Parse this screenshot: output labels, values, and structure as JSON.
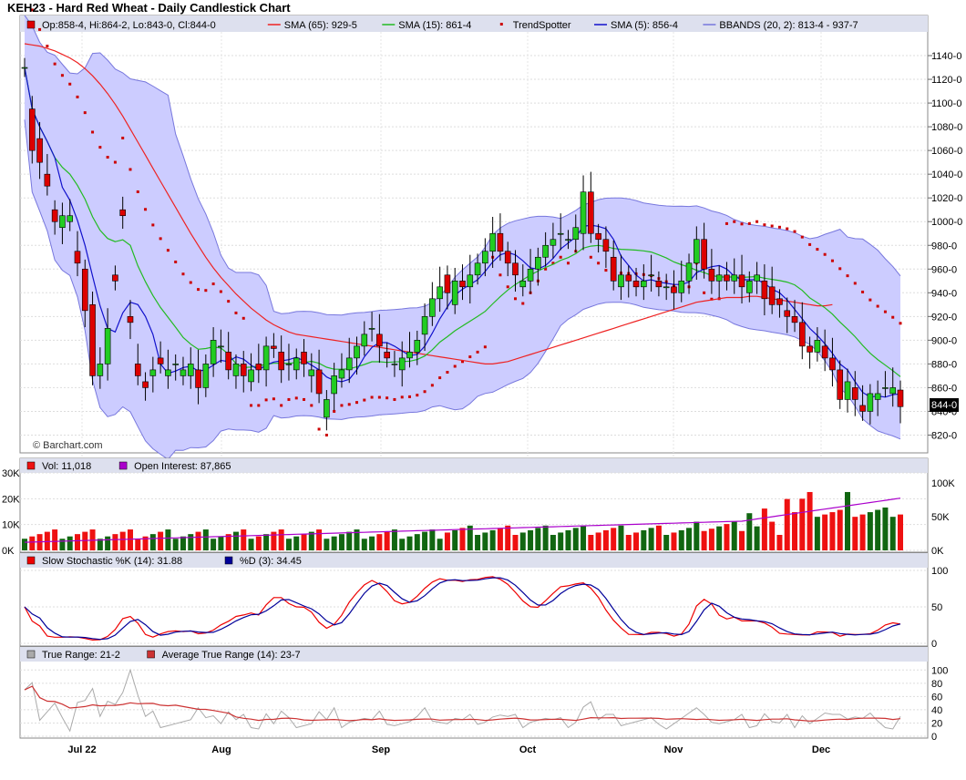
{
  "page": {
    "title": "KEH23 - Hard Red Wheat - Daily Candlestick Chart",
    "watermark": "© Barchart.com"
  },
  "price_panel": {
    "legend": [
      "Op:858-4, Hi:864-2, Lo:843-0, Cl:844-0",
      "SMA (65): 929-5",
      "SMA (15): 861-4",
      "TrendSpotter",
      "SMA (5): 856-4",
      "BBANDS (20, 2): 813-4 - 937-7"
    ],
    "ticks": [
      "1140-0",
      "1120-0",
      "1100-0",
      "1080-0",
      "1060-0",
      "1040-0",
      "1020-0",
      "1000-0",
      "980-0",
      "960-0",
      "940-0",
      "920-0",
      "900-0",
      "880-0",
      "860-0",
      "840-0",
      "820-0"
    ],
    "last_label": "844-0"
  },
  "volume_panel": {
    "legend": [
      "Vol: 11,018",
      "Open Interest: 87,865"
    ],
    "left_ticks": [
      "30K",
      "20K",
      "10K",
      "0K"
    ],
    "right_ticks": [
      "100K",
      "50K",
      "0K"
    ]
  },
  "stoch_panel": {
    "legend": [
      "Slow Stochastic %K (14): 31.88",
      "%D (3): 34.45"
    ],
    "ticks": [
      "100",
      "50",
      "0"
    ]
  },
  "tr_panel": {
    "legend": [
      "True Range: 21-2",
      "Average True Range (14): 23-7"
    ],
    "ticks": [
      "100",
      "80",
      "60",
      "40",
      "20",
      "0"
    ]
  },
  "x_labels": [
    "Jul 22",
    "Aug",
    "Sep",
    "Oct",
    "Nov",
    "Dec"
  ],
  "colors": {
    "up": "#22cc22",
    "down": "#dd0000",
    "sma65": "#ee2222",
    "sma15": "#22bb22",
    "sma5": "#1111cc",
    "trend": "#cc0000",
    "band_fill": "#ccccff",
    "band_line": "#7777dd",
    "vol_up": "#116611",
    "vol_down": "#ee1111",
    "oi": "#aa00cc",
    "stoch_k": "#ee0000",
    "stoch_d": "#000099",
    "tr": "#aaaaaa",
    "atr": "#cc3333"
  },
  "chart_data": {
    "type": "candlestick",
    "title": "KEH23 - Hard Red Wheat - Daily Candlestick Chart",
    "ylim": [
      805,
      1160
    ],
    "x_axis_labels": [
      "Jul 22",
      "Aug",
      "Sep",
      "Oct",
      "Nov",
      "Dec"
    ],
    "close": [
      1130,
      1060,
      1050,
      1030,
      1000,
      1005,
      1005,
      965,
      925,
      870,
      880,
      910,
      950,
      1005,
      915,
      870,
      860,
      875,
      880,
      875,
      880,
      875,
      880,
      860,
      880,
      900,
      895,
      875,
      880,
      870,
      875,
      875,
      895,
      893,
      875,
      880,
      885,
      880,
      875,
      855,
      850,
      870,
      875,
      885,
      895,
      905,
      910,
      895,
      885,
      880,
      885,
      890,
      900,
      920,
      935,
      945,
      940,
      950,
      945,
      955,
      965,
      975,
      990,
      975,
      965,
      955,
      950,
      960,
      970,
      980,
      985,
      990,
      985,
      995,
      1025,
      990,
      985,
      975,
      950,
      955,
      950,
      945,
      950,
      955,
      945,
      945,
      940,
      950,
      965,
      985,
      960,
      950,
      955,
      950,
      955,
      945,
      950,
      955,
      935,
      930,
      930,
      920,
      915,
      895,
      890,
      900,
      885,
      875,
      850,
      865,
      850,
      840,
      855,
      855,
      860,
      860,
      844
    ],
    "open": [
      1130,
      1095,
      1070,
      1040,
      1010,
      995,
      1000,
      975,
      960,
      930,
      870,
      880,
      955,
      1010,
      920,
      880,
      865,
      870,
      885,
      870,
      880,
      870,
      870,
      875,
      860,
      880,
      895,
      890,
      870,
      880,
      865,
      880,
      875,
      895,
      890,
      880,
      875,
      890,
      870,
      875,
      835,
      855,
      868,
      875,
      885,
      895,
      910,
      905,
      890,
      880,
      875,
      885,
      890,
      905,
      920,
      935,
      955,
      930,
      950,
      945,
      955,
      965,
      975,
      990,
      975,
      965,
      945,
      950,
      960,
      970,
      980,
      990,
      985,
      985,
      990,
      1025,
      990,
      985,
      970,
      945,
      955,
      950,
      945,
      955,
      950,
      945,
      945,
      940,
      950,
      965,
      985,
      960,
      950,
      955,
      950,
      955,
      940,
      950,
      950,
      945,
      935,
      925,
      920,
      915,
      895,
      890,
      895,
      885,
      875,
      850,
      860,
      845,
      840,
      850,
      860,
      855,
      858
    ],
    "sma65": [
      1150,
      1149,
      1148,
      1146,
      1144,
      1141,
      1138,
      1134,
      1129,
      1123,
      1116,
      1108,
      1099,
      1089,
      1078,
      1067,
      1056,
      1045,
      1034,
      1023,
      1012,
      1001,
      990,
      980,
      970,
      961,
      953,
      946,
      939,
      933,
      927,
      922,
      917,
      913,
      910,
      907,
      905,
      904,
      903,
      902,
      901,
      900,
      899,
      898,
      897,
      896,
      895,
      894,
      893,
      892,
      891,
      890,
      889,
      888,
      887,
      886,
      885,
      884,
      883,
      882,
      881,
      880,
      880,
      881,
      882,
      884,
      886,
      888,
      890,
      892,
      894,
      896,
      898,
      900,
      902,
      904,
      906,
      908,
      910,
      912,
      914,
      916,
      918,
      920,
      922,
      924,
      926,
      928,
      930,
      932,
      933,
      934,
      935,
      936,
      936,
      936,
      937,
      937,
      936,
      935,
      934,
      933,
      932,
      931,
      930,
      929,
      929,
      930
    ]
  }
}
